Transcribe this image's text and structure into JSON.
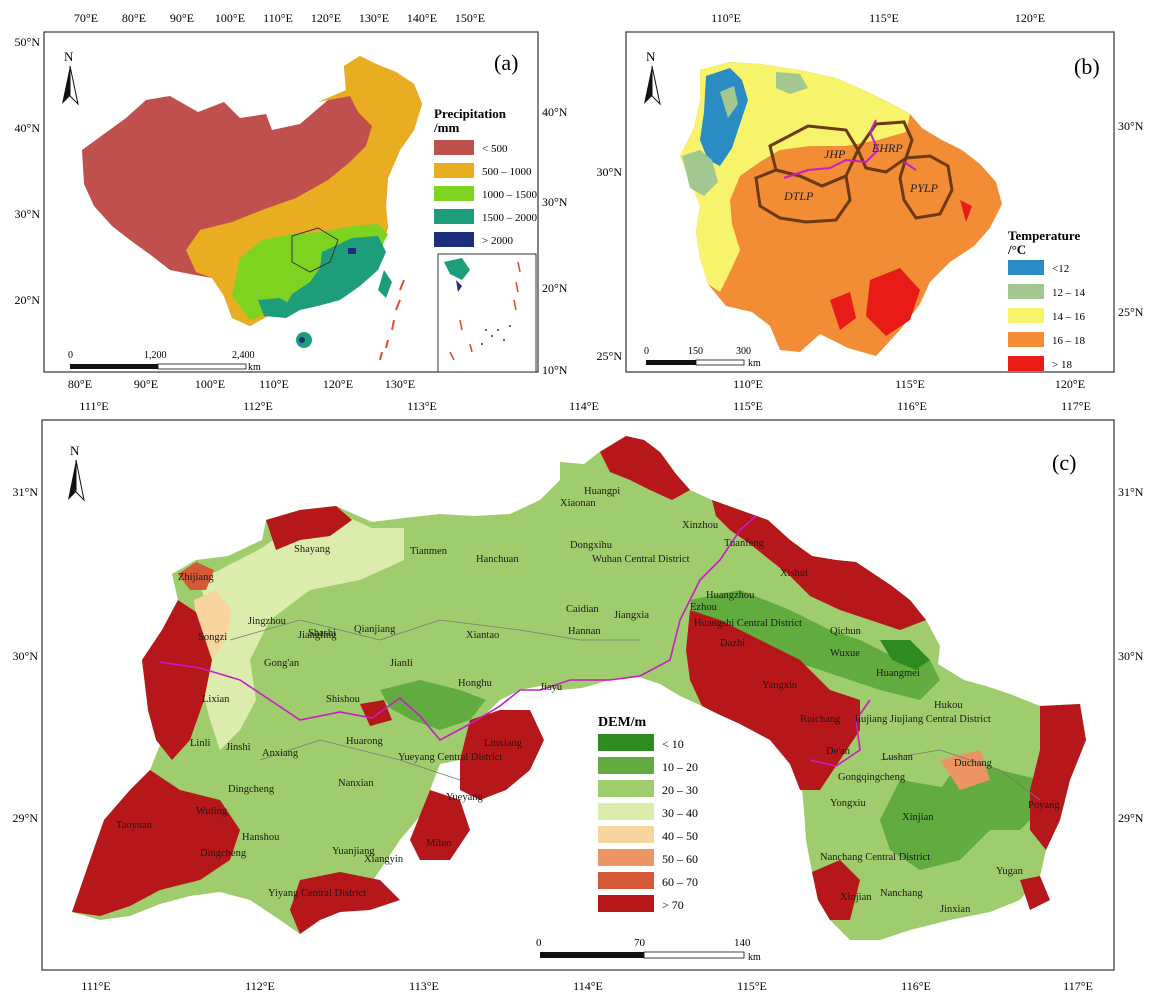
{
  "panel_a": {
    "label": "(a)",
    "north": "N",
    "legend_title_1": "Precipitation",
    "legend_title_2": "/mm",
    "legend": [
      {
        "label": "< 500",
        "color": "#c0504d"
      },
      {
        "label": "500 – 1000",
        "color": "#e8ad20"
      },
      {
        "label": "1000 – 1500",
        "color": "#7ed321"
      },
      {
        "label": "1500 – 2000",
        "color": "#1e9d7a"
      },
      {
        "label": "> 2000",
        "color": "#1b2f7e"
      }
    ],
    "top_ticks": [
      "70°E",
      "80°E",
      "90°E",
      "100°E",
      "110°E",
      "120°E",
      "130°E",
      "140°E",
      "150°E"
    ],
    "bottom_ticks": [
      "80°E",
      "90°E",
      "100°E",
      "110°E",
      "120°E",
      "130°E"
    ],
    "left_ticks": [
      "50°N",
      "40°N",
      "30°N",
      "20°N"
    ],
    "right_ticks": [
      "40°N",
      "30°N",
      "20°N",
      "10°N"
    ],
    "scale": {
      "zero": "0",
      "mid": "1,200",
      "end": "2,400",
      "unit": "km"
    }
  },
  "panel_b": {
    "label": "(b)",
    "north": "N",
    "legend_title_1": "Temperature",
    "legend_title_2": "/°C",
    "legend": [
      {
        "label": "<12",
        "color": "#2b8cc4"
      },
      {
        "label": "12 – 14",
        "color": "#a3c791"
      },
      {
        "label": "14 – 16",
        "color": "#f7f36b"
      },
      {
        "label": "16 – 18",
        "color": "#f28c35"
      },
      {
        "label": "> 18",
        "color": "#e81b16"
      }
    ],
    "regions": [
      "JHP",
      "EHRP",
      "DTLP",
      "PYLP"
    ],
    "top_ticks": [
      "110°E",
      "115°E",
      "120°E"
    ],
    "bottom_ticks": [
      "110°E",
      "115°E",
      "120°E"
    ],
    "left_ticks": [
      "30°N",
      "25°N"
    ],
    "right_ticks": [
      "30°N",
      "25°N"
    ],
    "scale": {
      "zero": "0",
      "mid": "150",
      "end": "300",
      "unit": "km"
    }
  },
  "panel_c": {
    "label": "(c)",
    "north": "N",
    "legend_title": "DEM/m",
    "legend": [
      {
        "label": "< 10",
        "color": "#2e8b1f"
      },
      {
        "label": "10 – 20",
        "color": "#62ab3f"
      },
      {
        "label": "20 – 30",
        "color": "#9fcc6c"
      },
      {
        "label": "30 – 40",
        "color": "#dcecac"
      },
      {
        "label": "40 – 50",
        "color": "#f7d59e"
      },
      {
        "label": "50 – 60",
        "color": "#ec9463"
      },
      {
        "label": "60 – 70",
        "color": "#d45a37"
      },
      {
        "label": "> 70",
        "color": "#b5171b"
      }
    ],
    "top_ticks": [
      "111°E",
      "112°E",
      "113°E",
      "114°E",
      "115°E",
      "116°E",
      "117°E"
    ],
    "bottom_ticks": [
      "111°E",
      "112°E",
      "113°E",
      "114°E",
      "115°E",
      "116°E",
      "117°E"
    ],
    "left_ticks": [
      "31°N",
      "30°N",
      "29°N"
    ],
    "right_ticks": [
      "31°N",
      "30°N",
      "29°N"
    ],
    "scale": {
      "zero": "0",
      "mid": "70",
      "end": "140",
      "unit": "km"
    },
    "places": [
      "Huangpi",
      "Xiaonan",
      "Xinzhou",
      "Tuanfeng",
      "Xishui",
      "Tianmen",
      "Hanchuan",
      "Dongxihu",
      "Wuhan Central District",
      "Shayang",
      "Zhijiang",
      "Jingzhou",
      "Shashi",
      "Qianjiang",
      "Xiantao",
      "Caidian",
      "Hannan",
      "Ezhou",
      "Huangzhou",
      "Qichun",
      "Songzi",
      "Jiangling",
      "Jiangxia",
      "Huangshi Central District",
      "Gong'an",
      "Jianli",
      "Honghu",
      "Jiayu",
      "Dazhi",
      "Wuxue",
      "Huangmei",
      "Lixian",
      "Shishou",
      "Yangxin",
      "Hukou",
      "Ruichang",
      "Jiujiang Jiujiang Central District",
      "Linli",
      "Jinshi",
      "Anxiang",
      "Huarong",
      "Yueyang Central District",
      "Linxiang",
      "De'an",
      "Lushan",
      "Duchang",
      "Gongqingcheng",
      "Dingcheng",
      "Nanxian",
      "Yueyang",
      "Yongxiu",
      "Wuling",
      "Xinjian",
      "Poyang",
      "Taoyuan",
      "Hanshou",
      "Yuanjiang",
      "Miluo",
      "Dingcheng",
      "Nanchang Central District",
      "Xiangyin",
      "Yugan",
      "Yiyang Central District",
      "Nanchang",
      "Xinjian",
      "Jinxian"
    ]
  }
}
